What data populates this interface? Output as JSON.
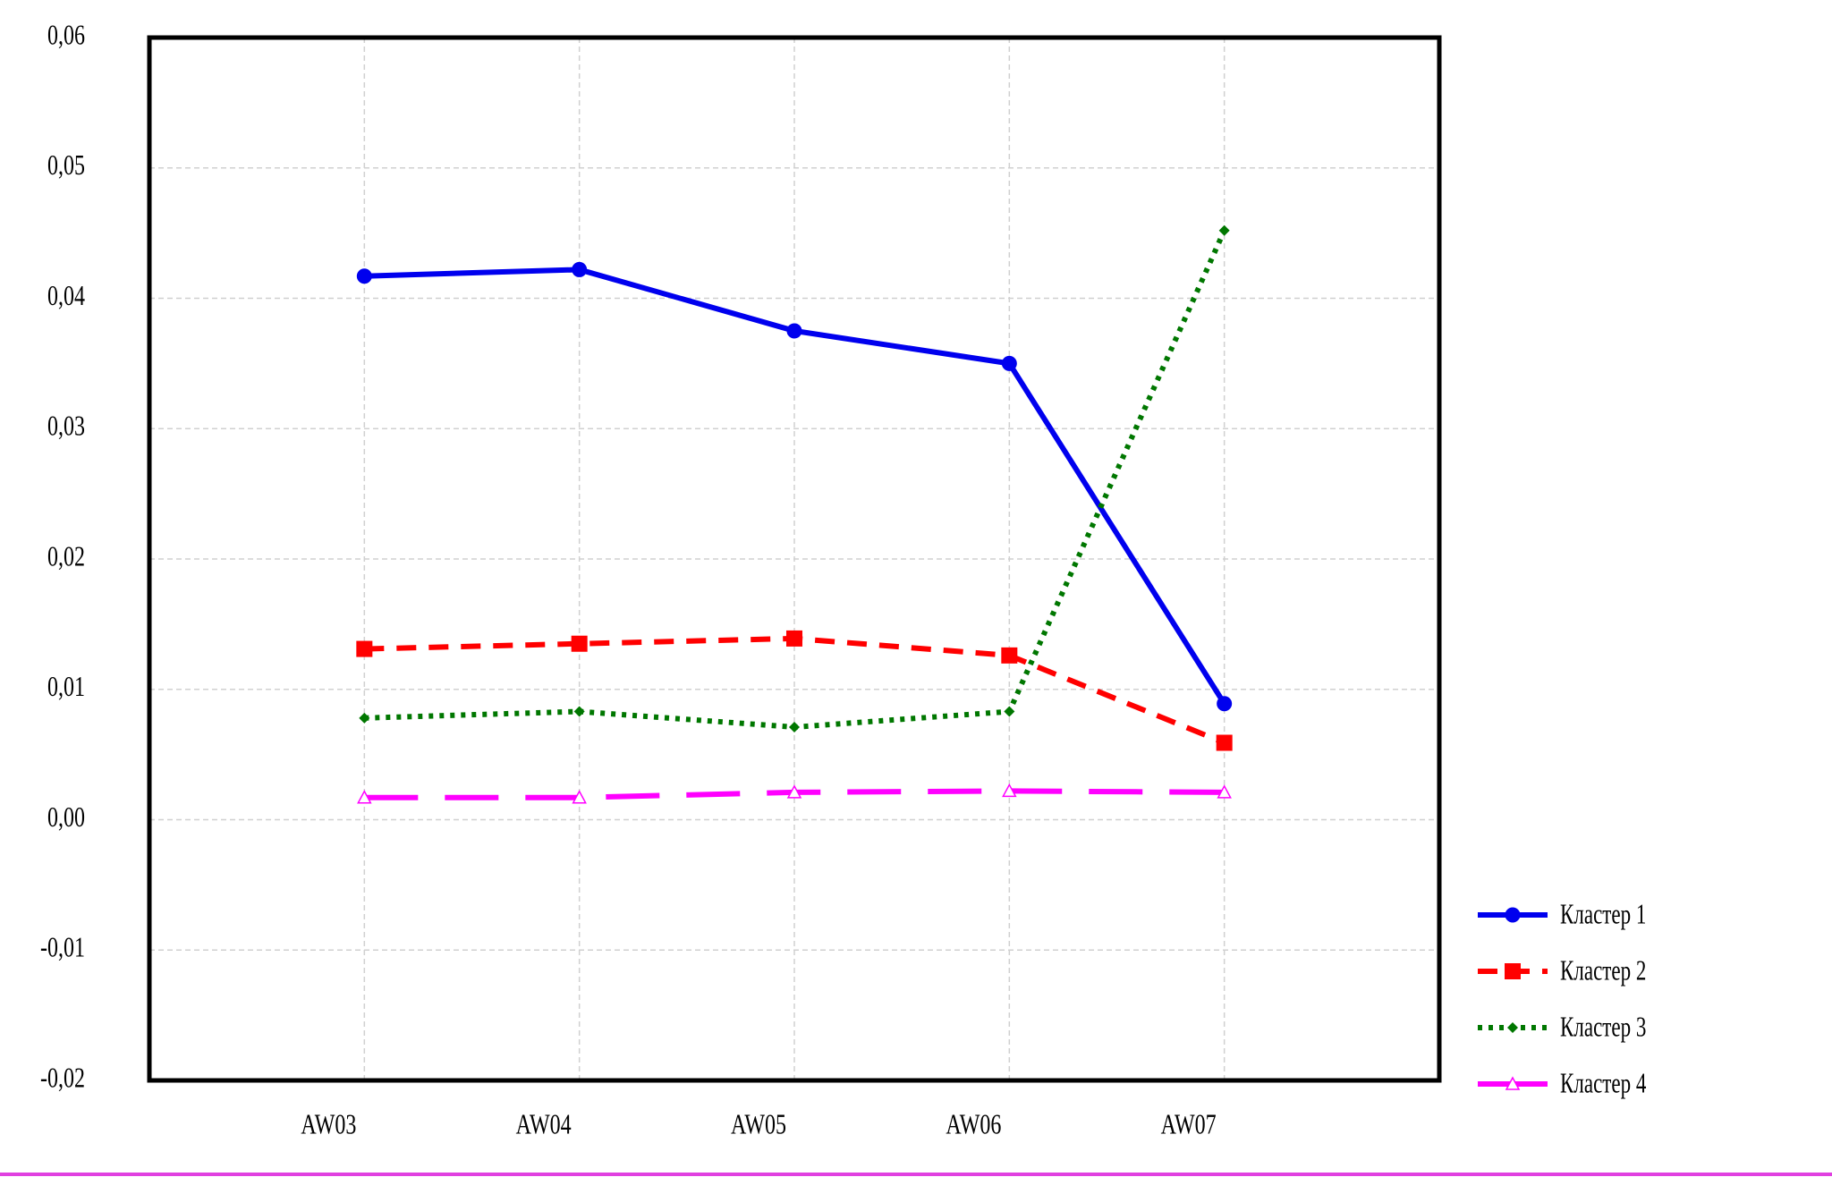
{
  "chart_data": {
    "type": "line",
    "categories": [
      "AW03",
      "AW04",
      "AW05",
      "AW06",
      "AW07"
    ],
    "series": [
      {
        "name": "Кластер 1",
        "color": "#0000ee",
        "line_style": "solid",
        "marker": "circle",
        "values": [
          0.0417,
          0.0422,
          0.0375,
          0.035,
          0.0089
        ]
      },
      {
        "name": "Кластер 2",
        "color": "#ff0000",
        "line_style": "dashed",
        "marker": "square",
        "values": [
          0.0131,
          0.0135,
          0.0139,
          0.0126,
          0.0059
        ]
      },
      {
        "name": "Кластер 3",
        "color": "#007700",
        "line_style": "dotted",
        "marker": "diamond",
        "values": [
          0.0078,
          0.0083,
          0.0071,
          0.0083,
          0.0452
        ]
      },
      {
        "name": "Кластер 4",
        "color": "#ff00ff",
        "line_style": "longdash",
        "marker": "triangle",
        "values": [
          0.0017,
          0.0017,
          0.0021,
          0.0022,
          0.0021
        ]
      }
    ],
    "ylim": [
      -0.02,
      0.06
    ],
    "yticks": [
      {
        "value": -0.02,
        "label": "-0,02"
      },
      {
        "value": -0.01,
        "label": "-0,01"
      },
      {
        "value": 0,
        "label": "0,00"
      },
      {
        "value": 0.01,
        "label": "0,01"
      },
      {
        "value": 0.02,
        "label": "0,02"
      },
      {
        "value": 0.03,
        "label": "0,03"
      },
      {
        "value": 0.04,
        "label": "0,04"
      },
      {
        "value": 0.05,
        "label": "0,05"
      },
      {
        "value": 0.06,
        "label": "0,06"
      }
    ],
    "grid": true,
    "legend": "bottom-right"
  }
}
